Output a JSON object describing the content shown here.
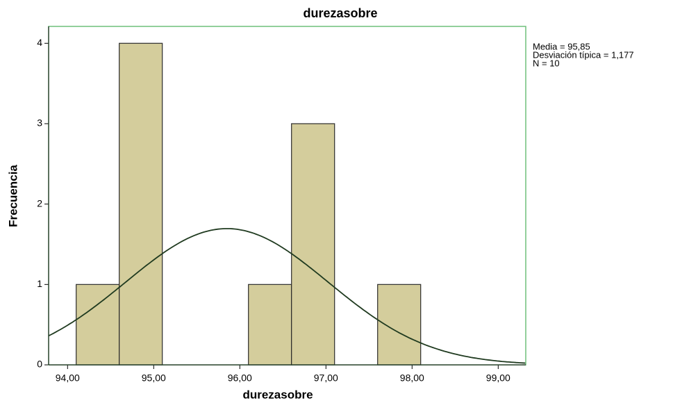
{
  "chart_data": {
    "type": "histogram",
    "title": "durezasobre",
    "x_label": "durezasobre",
    "y_label": "Frecuencia",
    "bins": [
      94.1,
      94.6,
      95.1,
      95.6,
      96.1,
      96.6,
      97.1,
      97.6,
      98.1
    ],
    "counts": [
      1,
      4,
      0,
      0,
      1,
      3,
      0,
      1
    ],
    "color": "#d4cd9c",
    "edge_color": "#2b2b2b",
    "frame_color": "#6fbf7a",
    "xlim": [
      93.78,
      99.32
    ],
    "ylim": [
      0,
      4.21
    ],
    "xticks": [
      {
        "value": 94,
        "label": "94,00"
      },
      {
        "value": 95,
        "label": "95,00"
      },
      {
        "value": 96,
        "label": "96,00"
      },
      {
        "value": 97,
        "label": "97,00"
      },
      {
        "value": 98,
        "label": "98,00"
      },
      {
        "value": 99,
        "label": "99,00"
      }
    ],
    "yticks": [
      0,
      1,
      2,
      3,
      4
    ],
    "normal_curve": {
      "mean": 95.85,
      "sd": 1.177,
      "n": 10,
      "color": "#1f3a1f"
    },
    "annotations": [
      "Media = 95,85",
      "Desviación típica = 1,177",
      "N = 10"
    ]
  }
}
